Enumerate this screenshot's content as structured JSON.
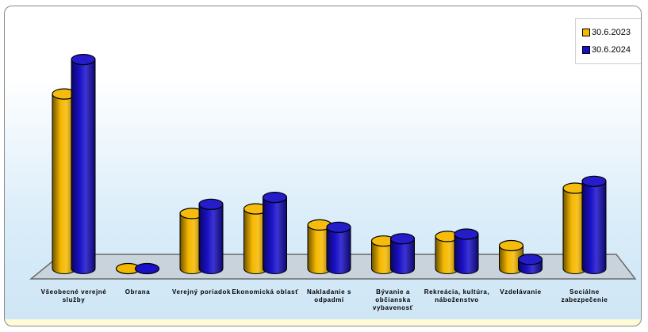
{
  "chart_data": {
    "type": "bar",
    "categories": [
      [
        "Všeobecné verejné",
        "služby"
      ],
      [
        "Obrana"
      ],
      [
        "Verejný poriadok"
      ],
      [
        "Ekonomická oblasť"
      ],
      [
        "Nakladanie s",
        "odpadmi"
      ],
      [
        "Bývanie a",
        "občianska",
        "vybavenosť"
      ],
      [
        "Rekreácia, kultúra,",
        "náboženstvo"
      ],
      [
        "Vzdelávanie"
      ],
      [
        "Sociálne",
        "zabezpečenie"
      ]
    ],
    "series": [
      {
        "name": "30.6.2023",
        "color": "#f5b800",
        "values": [
          76,
          0,
          24,
          26,
          19,
          12,
          14,
          10,
          35
        ]
      },
      {
        "name": "30.6.2024",
        "color": "#1a10c8",
        "values": [
          91,
          0,
          28,
          31,
          18,
          13,
          15,
          4,
          38
        ]
      }
    ],
    "title": "",
    "xlabel": "",
    "ylabel": "",
    "ylim": [
      0,
      100
    ],
    "legend_position": "top-right",
    "grid": false
  }
}
